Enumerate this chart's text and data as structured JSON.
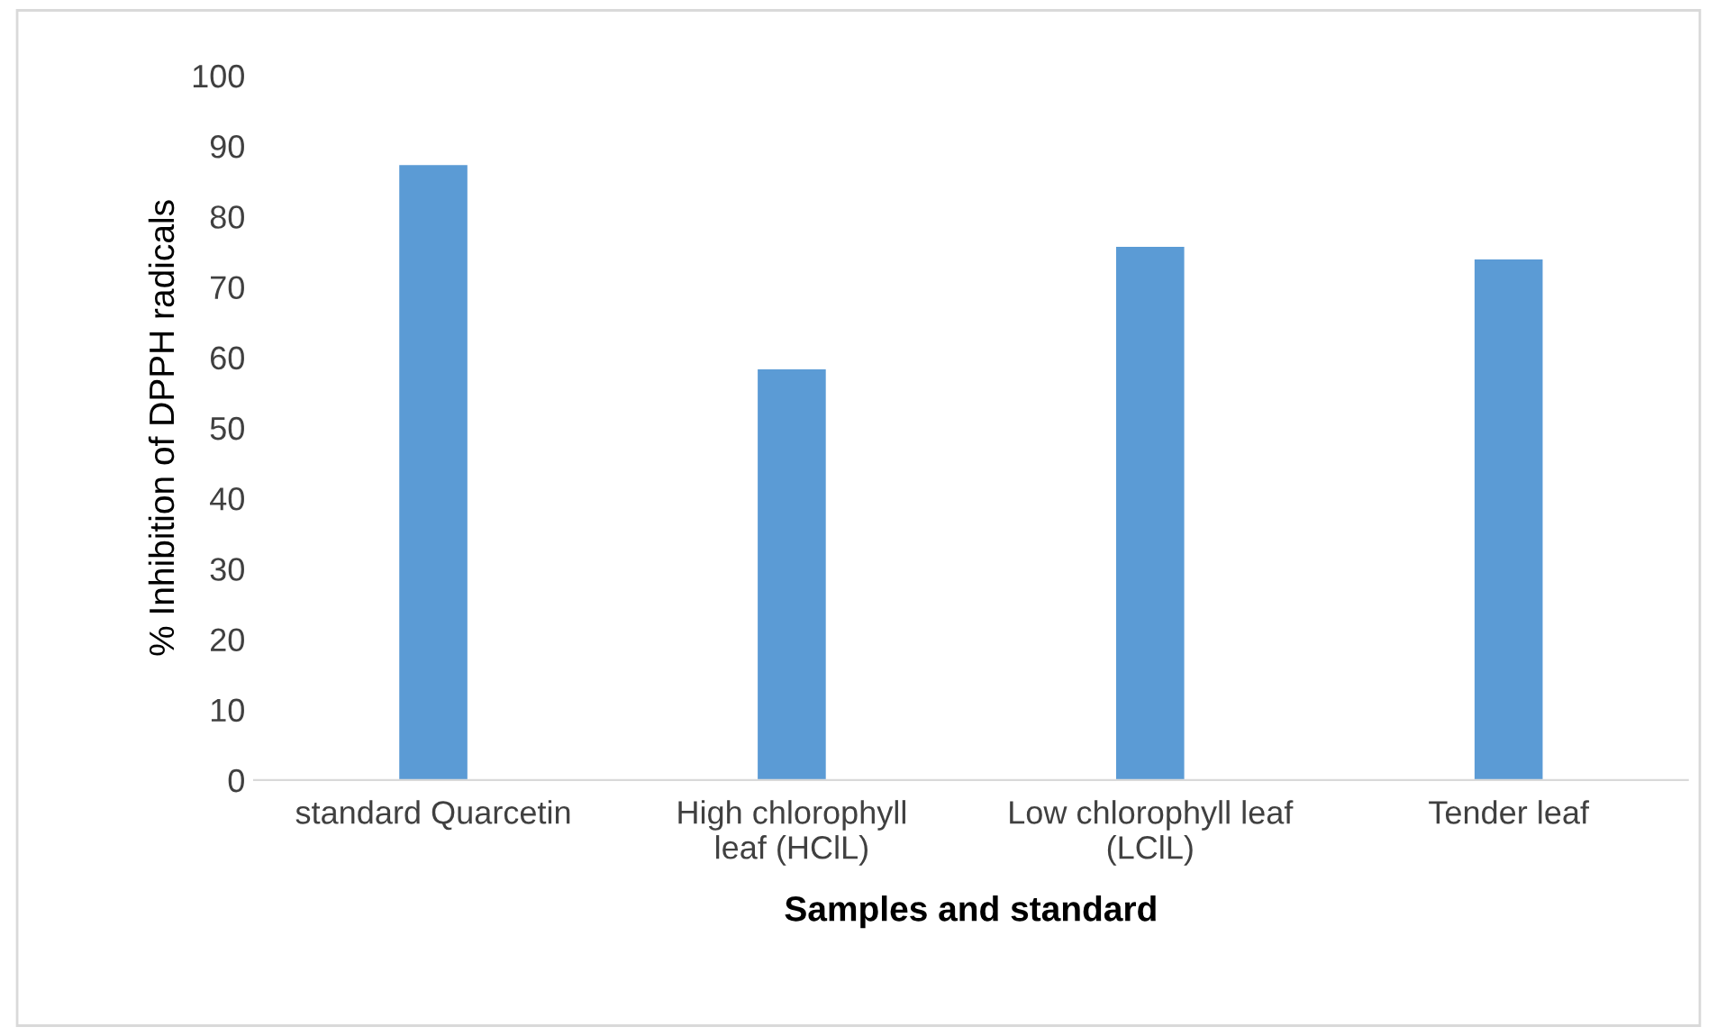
{
  "chart_data": {
    "type": "bar",
    "xlabel": "Samples and standard",
    "ylabel": "% Inhibition of DPPH radicals",
    "categories": [
      "standard Quarcetin",
      "High chlorophyll\nleaf (HClL)",
      "Low chlorophyll leaf\n(LClL)",
      "Tender leaf"
    ],
    "values": [
      87.3,
      58.3,
      75.7,
      73.9
    ],
    "color": "#5b9bd5",
    "ylim": [
      0,
      100
    ],
    "yticks": [
      0,
      10,
      20,
      30,
      40,
      50,
      60,
      70,
      80,
      90,
      100
    ],
    "grid": false,
    "legend": false
  }
}
